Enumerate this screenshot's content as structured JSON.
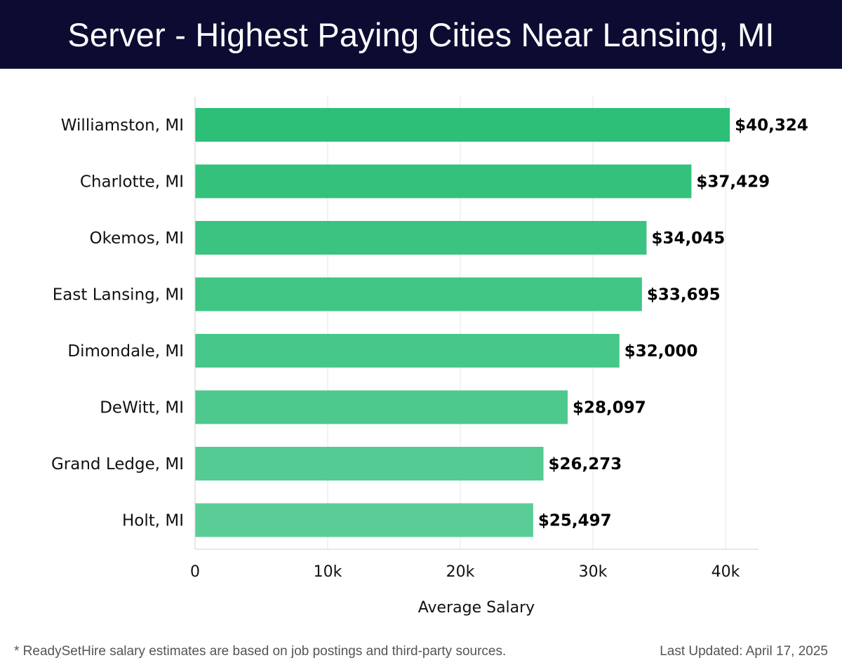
{
  "header": {
    "title": "Server - Highest Paying Cities Near Lansing, MI"
  },
  "colors": {
    "header_bg": "#0c0c33",
    "bar_top": "#2dbf78",
    "bar_bottom": "#5acd96"
  },
  "chart_data": {
    "type": "bar",
    "orientation": "horizontal",
    "categories": [
      "Williamston, MI",
      "Charlotte, MI",
      "Okemos, MI",
      "East Lansing, MI",
      "Dimondale, MI",
      "DeWitt, MI",
      "Grand Ledge, MI",
      "Holt, MI"
    ],
    "values": [
      40324,
      37429,
      34045,
      33695,
      32000,
      28097,
      26273,
      25497
    ],
    "value_labels": [
      "$40,324",
      "$37,429",
      "$34,045",
      "$33,695",
      "$32,000",
      "$28,097",
      "$26,273",
      "$25,497"
    ],
    "xlabel": "Average Salary",
    "ylabel": "",
    "xlim": [
      0,
      42500
    ],
    "x_ticks": [
      0,
      10000,
      20000,
      30000,
      40000
    ],
    "x_tick_labels": [
      "0",
      "10k",
      "20k",
      "30k",
      "40k"
    ],
    "grid": true
  },
  "footer": {
    "note": "* ReadySetHire salary estimates are based on job postings and third-party sources.",
    "updated": "Last Updated: April 17, 2025"
  }
}
